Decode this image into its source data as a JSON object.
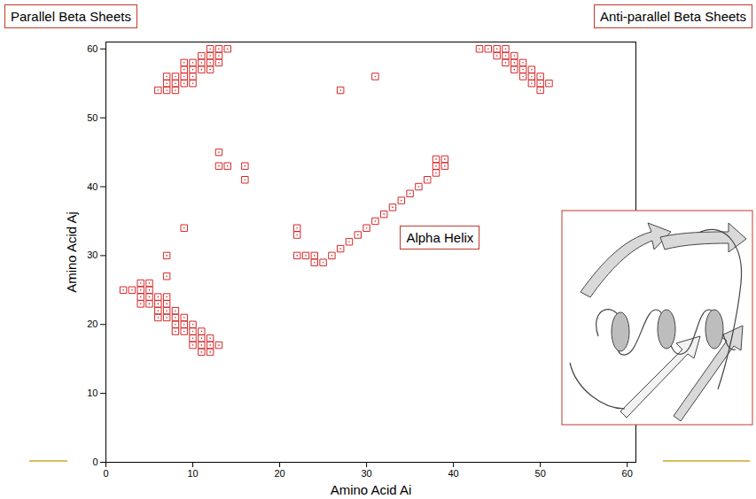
{
  "chart_data": {
    "type": "scatter",
    "x_label": "Amino Acid Ai",
    "y_label": "Amino Acid Aj",
    "marker": "square",
    "color": "#d62728",
    "xlim": [
      0,
      61
    ],
    "ylim": [
      0,
      61
    ],
    "xticks": [
      0,
      10,
      20,
      30,
      40,
      50,
      60
    ],
    "yticks": [
      0,
      10,
      20,
      30,
      40,
      50,
      60
    ],
    "grid": false,
    "annotations": [
      {
        "text": "Parallel Beta Sheets"
      },
      {
        "text": "Anti-parallel Beta Sheets"
      },
      {
        "text": "Alpha Helix",
        "x": 38.5,
        "y": 32.5
      }
    ],
    "x": [
      2,
      3,
      4,
      4,
      5,
      5,
      4,
      5,
      4,
      5,
      6,
      6,
      6,
      6,
      7,
      7,
      7,
      7,
      8,
      8,
      8,
      8,
      9,
      9,
      9,
      10,
      10,
      10,
      10,
      11,
      11,
      11,
      11,
      12,
      12,
      12,
      13,
      7,
      7,
      9,
      6,
      7,
      7,
      7,
      8,
      8,
      8,
      9,
      9,
      9,
      9,
      10,
      10,
      10,
      10,
      11,
      11,
      11,
      12,
      12,
      12,
      12,
      13,
      13,
      13,
      14,
      13,
      13,
      14,
      16,
      16,
      22,
      22,
      22,
      23,
      24,
      24,
      25,
      26,
      27,
      28,
      29,
      30,
      31,
      32,
      33,
      34,
      35,
      36,
      37,
      38,
      38,
      38,
      39,
      39,
      27,
      31,
      43,
      44,
      45,
      45,
      46,
      46,
      46,
      47,
      47,
      47,
      48,
      48,
      48,
      49,
      49,
      49,
      50,
      50,
      50,
      51
    ],
    "y": [
      25,
      25,
      25,
      26,
      26,
      25,
      24,
      24,
      23,
      23,
      24,
      23,
      22,
      21,
      24,
      23,
      22,
      21,
      22,
      21,
      20,
      19,
      21,
      20,
      19,
      20,
      19,
      18,
      17,
      19,
      18,
      17,
      16,
      18,
      17,
      16,
      17,
      27,
      30,
      34,
      54,
      54,
      55,
      56,
      54,
      55,
      56,
      55,
      56,
      57,
      58,
      55,
      56,
      57,
      58,
      57,
      58,
      59,
      57,
      58,
      59,
      60,
      58,
      59,
      60,
      60,
      45,
      43,
      43,
      43,
      41,
      34,
      33,
      30,
      30,
      29,
      30,
      29,
      30,
      31,
      32,
      33,
      34,
      35,
      36,
      37,
      38,
      39,
      40,
      41,
      42,
      43,
      44,
      43,
      44,
      54,
      56,
      60,
      60,
      60,
      59,
      60,
      59,
      58,
      59,
      58,
      57,
      58,
      57,
      56,
      57,
      56,
      55,
      56,
      55,
      54,
      55
    ]
  }
}
